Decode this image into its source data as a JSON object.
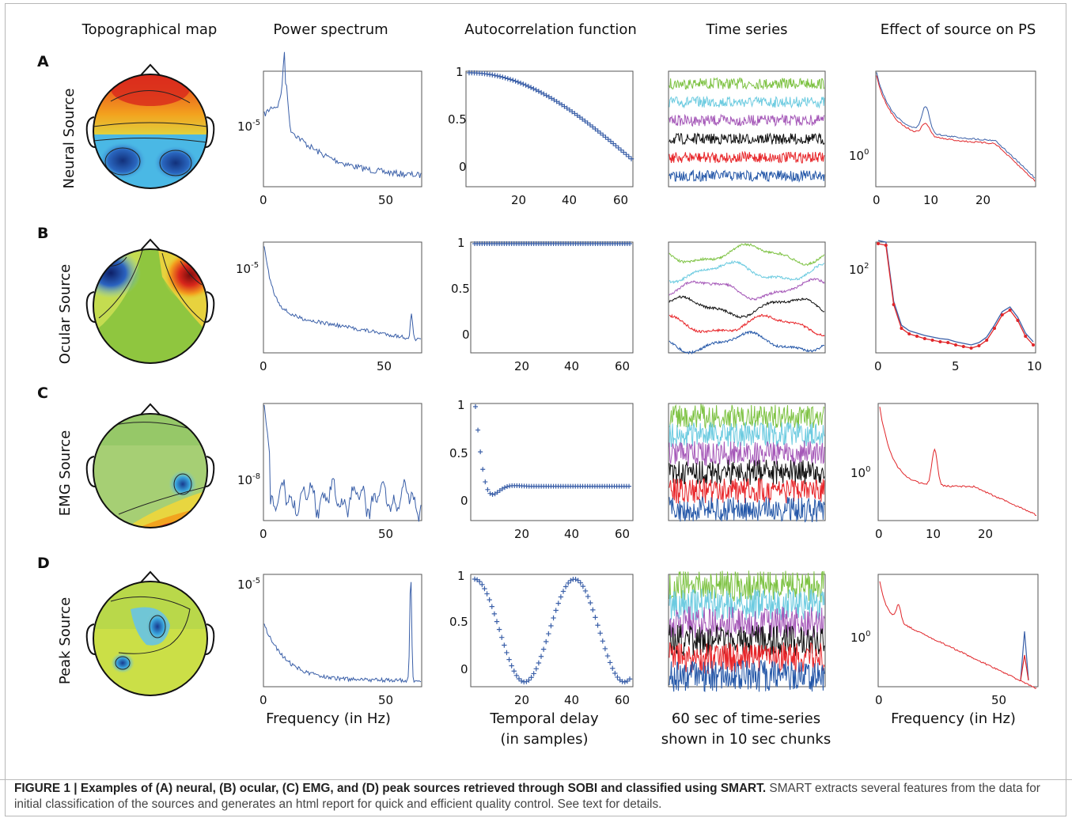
{
  "column_titles": [
    "Topographical map",
    "Power spectrum",
    "Autocorrelation function",
    "Time series",
    "Effect of source on PS"
  ],
  "rows": [
    {
      "letter": "A",
      "label": "Neural Source"
    },
    {
      "letter": "B",
      "label": "Ocular Source"
    },
    {
      "letter": "C",
      "label": "EMG Source"
    },
    {
      "letter": "D",
      "label": "Peak Source"
    }
  ],
  "axis_titles": {
    "ps": "Frequency (in Hz)",
    "acf_1": "Temporal delay",
    "acf_2": "(in samples)",
    "ts_1": "60 sec of time-series",
    "ts_2": "shown in 10 sec chunks",
    "eff": "Frequency (in Hz)"
  },
  "caption": {
    "bold": "FIGURE 1 | Examples of (A) neural, (B) ocular, (C) EMG, and (D) peak sources retrieved through SOBI and classified using SMART.",
    "rest": " SMART extracts several features from the data for initial classification of the sources and generates an html report for quick and efficient quality control. See text for details."
  },
  "colors": {
    "plot_blue": "#3a5fa8",
    "plot_red": "#e0262a",
    "ts_green": "#7dc242",
    "ts_cyan": "#6ccbe0",
    "ts_purple": "#a558b8",
    "ts_black": "#111111",
    "ts_red": "#e8262a",
    "ts_blue": "#2457a8"
  },
  "chart_data": [
    {
      "id": "A-ps",
      "type": "line",
      "xticks": [
        0,
        50
      ],
      "yticklabel": "10",
      "ytickexp": "-5",
      "series": [
        {
          "name": "",
          "x": [
            0,
            9,
            12,
            20,
            30,
            40,
            50,
            64
          ],
          "y": [
            0.55,
            0.95,
            0.6,
            0.45,
            0.32,
            0.18,
            0.1,
            0.05
          ]
        }
      ]
    },
    {
      "id": "A-acf",
      "type": "scatter",
      "xticks": [
        20,
        40,
        60
      ],
      "yticks": [
        "1",
        "0.5",
        "0"
      ],
      "ylim": [
        -0.1,
        1
      ],
      "series": [
        {
          "name": "",
          "x": [
            1,
            10,
            20,
            30,
            40,
            50,
            60,
            64
          ],
          "y": [
            1,
            0.97,
            0.88,
            0.74,
            0.55,
            0.33,
            0.1,
            0.02
          ]
        }
      ]
    },
    {
      "id": "A-ts",
      "type": "line",
      "series": [
        {
          "name": "green"
        },
        {
          "name": "cyan"
        },
        {
          "name": "purple"
        },
        {
          "name": "black"
        },
        {
          "name": "red"
        },
        {
          "name": "blue"
        }
      ]
    },
    {
      "id": "A-eff",
      "type": "line",
      "xticks": [
        0,
        10,
        20
      ],
      "yticklabel": "10",
      "ytickexp": "0",
      "series": [
        {
          "name": "blue",
          "x": [
            0,
            1,
            3,
            6,
            8,
            10,
            14,
            20,
            25,
            28
          ],
          "y": [
            0.95,
            0.6,
            0.5,
            0.45,
            0.6,
            0.4,
            0.35,
            0.34,
            0.2,
            0.02
          ]
        },
        {
          "name": "red",
          "x": [
            0,
            1,
            3,
            6,
            8,
            10,
            14,
            20,
            25,
            28
          ],
          "y": [
            0.95,
            0.58,
            0.47,
            0.42,
            0.5,
            0.36,
            0.32,
            0.31,
            0.18,
            0.02
          ]
        }
      ]
    },
    {
      "id": "B-ps",
      "type": "line",
      "xticks": [
        0,
        50
      ],
      "yticklabel": "10",
      "ytickexp": "-5"
    },
    {
      "id": "B-acf",
      "type": "scatter",
      "xticks": [
        20,
        40,
        60
      ],
      "yticks": [
        "1",
        "0.5",
        "0"
      ]
    },
    {
      "id": "B-ts",
      "type": "line"
    },
    {
      "id": "B-eff",
      "type": "line",
      "xticks": [
        0,
        5,
        10
      ],
      "yticklabel": "10",
      "ytickexp": "2"
    },
    {
      "id": "C-ps",
      "type": "line",
      "xticks": [
        0,
        50
      ],
      "yticklabel": "10",
      "ytickexp": "-8"
    },
    {
      "id": "C-acf",
      "type": "scatter",
      "xticks": [
        20,
        40,
        60
      ],
      "yticks": [
        "1",
        "0.5",
        "0"
      ]
    },
    {
      "id": "C-ts",
      "type": "line"
    },
    {
      "id": "C-eff",
      "type": "line",
      "xticks": [
        0,
        10,
        20
      ],
      "yticklabel": "10",
      "ytickexp": "0"
    },
    {
      "id": "D-ps",
      "type": "line",
      "xticks": [
        0,
        50
      ],
      "yticklabel": "10",
      "ytickexp": "-5"
    },
    {
      "id": "D-acf",
      "type": "scatter",
      "xticks": [
        20,
        40,
        60
      ],
      "yticks": [
        "1",
        "0.5",
        "0"
      ]
    },
    {
      "id": "D-ts",
      "type": "line"
    },
    {
      "id": "D-eff",
      "type": "line",
      "xticks": [
        0,
        50
      ],
      "yticklabel": "10",
      "ytickexp": "0"
    }
  ]
}
